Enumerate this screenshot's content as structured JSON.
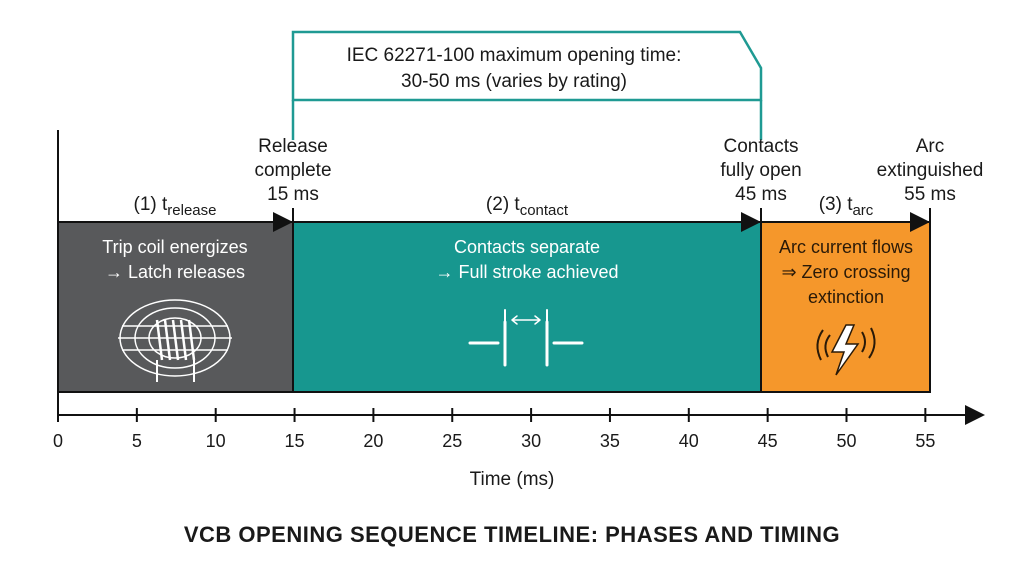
{
  "title": "VCB OPENING SEQUENCE TIMELINE: PHASES AND TIMING",
  "standard_note": {
    "line1": "IEC 62271-100 maximum opening time:",
    "line2": "30-50 ms (varies by rating)",
    "from_ms": 15,
    "to_ms": 45
  },
  "axis": {
    "label": "Time (ms)",
    "min": 0,
    "max": 55,
    "ticks": [
      0,
      5,
      10,
      15,
      20,
      25,
      30,
      35,
      40,
      45,
      50,
      55
    ]
  },
  "colors": {
    "release": "#58595b",
    "contact": "#17978f",
    "arc": "#f5972b",
    "bracket": "#1f9a93"
  },
  "milestones": [
    {
      "lines": [
        "Release",
        "complete",
        "15 ms"
      ],
      "ms": 15
    },
    {
      "lines": [
        "Contacts",
        "fully open",
        "45 ms"
      ],
      "ms": 45
    },
    {
      "lines": [
        "Arc",
        "extinguished",
        "55 ms"
      ],
      "ms": 55
    }
  ],
  "phases": [
    {
      "prefix": "(1) t",
      "sub": "release",
      "start": 0,
      "end": 15,
      "lines": [
        "Trip coil energizes",
        "→ Latch releases"
      ],
      "icon": "coil-magnetic-field-icon"
    },
    {
      "prefix": "(2) t",
      "sub": "contact",
      "start": 15,
      "end": 45,
      "lines": [
        "Contacts separate",
        "→ Full stroke achieved"
      ],
      "icon": "contacts-separating-icon"
    },
    {
      "prefix": "(3) t",
      "sub": "arc",
      "start": 45,
      "end": 55,
      "lines": [
        "Arc current flows",
        "⇒ Zero crossing",
        "extinction"
      ],
      "icon": "lightning-arc-icon"
    }
  ]
}
